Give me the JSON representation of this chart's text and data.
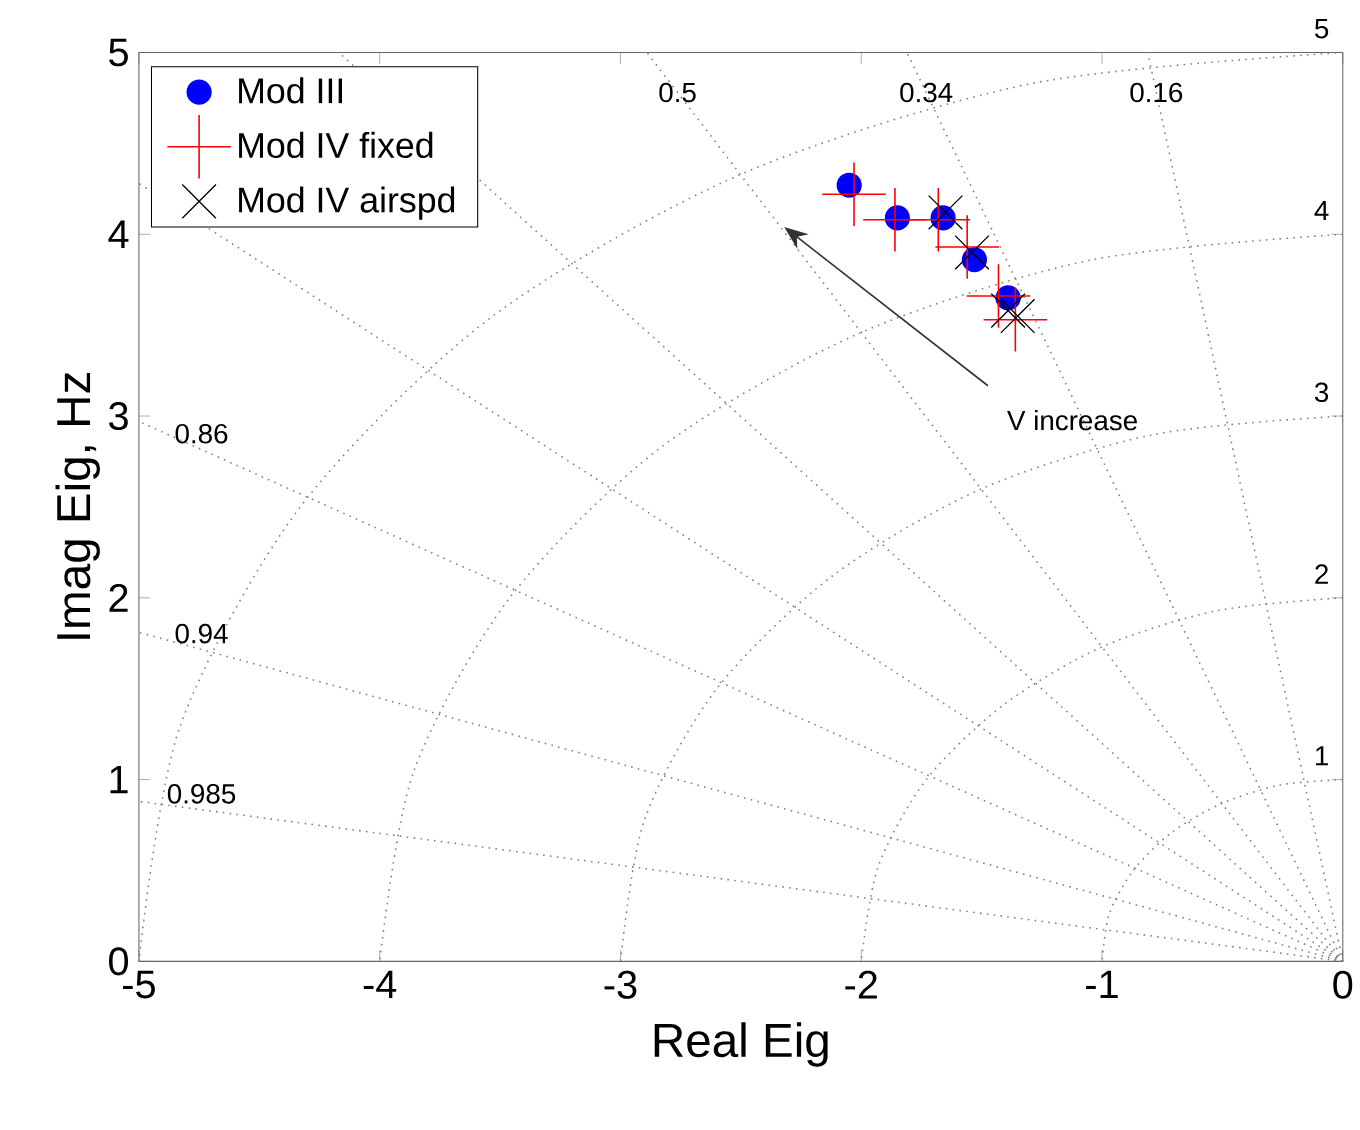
{
  "chart_data": {
    "type": "scatter",
    "xlabel": "Real Eig",
    "ylabel": "Imag Eig, Hz",
    "xlim": [
      -5,
      0
    ],
    "ylim": [
      0,
      5
    ],
    "xticks": [
      -5,
      -4,
      -3,
      -2,
      -1,
      0
    ],
    "yticks": [
      0,
      1,
      2,
      3,
      4,
      5
    ],
    "grid": false,
    "legend": "top left",
    "series": [
      {
        "type": "line",
        "color": "#808080",
        "line_style": "dotted",
        "marker": "none",
        "x": [
          0,
          -0.81
        ],
        "values": [
          0,
          5
        ]
      },
      {
        "type": "line",
        "color": "#808080",
        "line_style": "dotted",
        "marker": "none",
        "x": [
          0,
          -1.81
        ],
        "values": [
          0,
          5
        ]
      },
      {
        "type": "line",
        "color": "#808080",
        "line_style": "dotted",
        "marker": "none",
        "x": [
          0,
          -2.89
        ],
        "values": [
          0,
          5
        ]
      },
      {
        "type": "line",
        "color": "#808080",
        "line_style": "dotted",
        "marker": "none",
        "x": [
          0,
          -4.17
        ],
        "values": [
          0,
          5
        ]
      },
      {
        "type": "line",
        "color": "#808080",
        "line_style": "dotted",
        "marker": "none",
        "x": [
          0,
          -5
        ],
        "values": [
          0,
          4.28
        ]
      },
      {
        "type": "line",
        "color": "#808080",
        "line_style": "dotted",
        "marker": "none",
        "x": [
          0,
          -5
        ],
        "values": [
          0,
          2.97
        ]
      },
      {
        "type": "line",
        "color": "#808080",
        "line_style": "dotted",
        "marker": "none",
        "x": [
          0,
          -5
        ],
        "values": [
          0,
          1.81
        ]
      },
      {
        "type": "line",
        "color": "#808080",
        "line_style": "dotted",
        "marker": "none",
        "x": [
          0,
          -5
        ],
        "values": [
          0,
          0.88
        ]
      },
      {
        "type": "line",
        "color": "#808080",
        "line_style": "dotted",
        "marker": "none",
        "x": [
          0,
          -0.26,
          -0.5,
          -0.71,
          -0.87,
          -0.97,
          -1
        ],
        "values": [
          1,
          0.97,
          0.87,
          0.71,
          0.5,
          0.26,
          0
        ]
      },
      {
        "type": "line",
        "color": "#808080",
        "line_style": "dotted",
        "marker": "none",
        "x": [
          0,
          -0.52,
          -1,
          -1.41,
          -1.73,
          -1.93,
          -2
        ],
        "values": [
          2,
          1.93,
          1.73,
          1.41,
          1,
          0.52,
          0
        ]
      },
      {
        "type": "line",
        "color": "#808080",
        "line_style": "dotted",
        "marker": "none",
        "x": [
          0,
          -0.78,
          -1.5,
          -2.12,
          -2.6,
          -2.9,
          -3
        ],
        "values": [
          3,
          2.9,
          2.6,
          2.12,
          1.5,
          0.78,
          0
        ]
      },
      {
        "type": "line",
        "color": "#808080",
        "line_style": "dotted",
        "marker": "none",
        "x": [
          0,
          -1.04,
          -2,
          -2.83,
          -3.46,
          -3.86,
          -4
        ],
        "values": [
          4,
          3.86,
          3.46,
          2.83,
          2,
          1.04,
          0
        ]
      },
      {
        "type": "line",
        "color": "#808080",
        "line_style": "dotted",
        "marker": "none",
        "x": [
          0,
          -1.29,
          -2.5,
          -3.54,
          -4.33,
          -4.83,
          -5
        ],
        "values": [
          5,
          4.83,
          4.33,
          3.54,
          2.5,
          1.29,
          0
        ]
      },
      {
        "name": "Mod III",
        "color": "#0000ff",
        "marker": "circle",
        "x": [
          -2.05,
          -1.85,
          -1.66,
          -1.53,
          -1.39
        ],
        "values": [
          4.27,
          4.09,
          4.09,
          3.86,
          3.65
        ]
      },
      {
        "name": "Mod IV fixed",
        "color": "#ff0000",
        "marker": "cross",
        "x": [
          -2.03,
          -1.86,
          -1.68,
          -1.56,
          -1.43,
          -1.36
        ],
        "values": [
          4.22,
          4.08,
          4.08,
          3.93,
          3.66,
          3.53
        ]
      },
      {
        "name": "Mod IV airspd",
        "color": "#000000",
        "marker": "cross",
        "x": [
          -1.65,
          -1.54,
          -1.39,
          -1.35
        ],
        "values": [
          4.12,
          3.9,
          3.58,
          3.55
        ]
      }
    ],
    "annotations": [
      "0.5",
      "0.34",
      "0.16",
      "5",
      "4",
      "3",
      "2",
      "1",
      "0.86",
      "0.94",
      "0.985",
      {
        "text": "V increase",
        "x": -2.32,
        "y": 4.04
      }
    ]
  }
}
